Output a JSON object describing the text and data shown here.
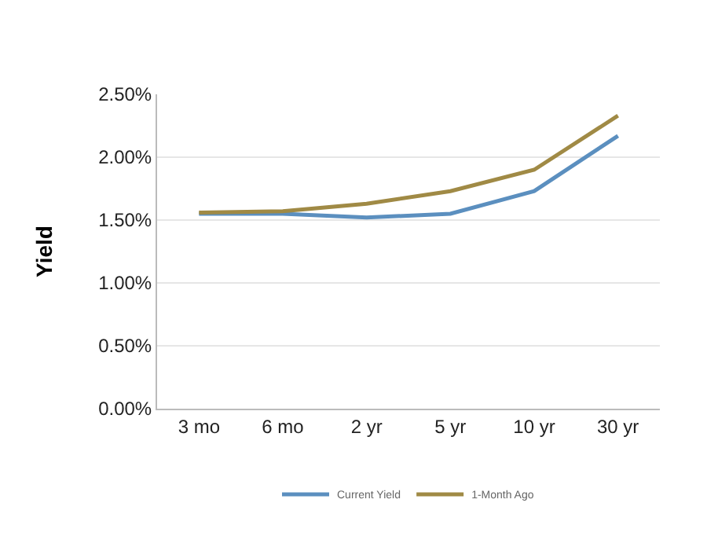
{
  "chart_data": {
    "type": "line",
    "ylabel": "Yield",
    "categories": [
      "3 mo",
      "6 mo",
      "2 yr",
      "5 yr",
      "10 yr",
      "30 yr"
    ],
    "series": [
      {
        "name": "Current Yield",
        "color": "#5b8fbf",
        "values": [
          1.55,
          1.55,
          1.52,
          1.55,
          1.73,
          2.17
        ]
      },
      {
        "name": "1-Month Ago",
        "color": "#a08a45",
        "values": [
          1.56,
          1.57,
          1.63,
          1.73,
          1.9,
          2.33
        ]
      }
    ],
    "ylim": [
      0,
      2.5
    ],
    "yticks": [
      {
        "value": 0,
        "label": "0.00%"
      },
      {
        "value": 0.5,
        "label": "0.50%"
      },
      {
        "value": 1,
        "label": "1.00%"
      },
      {
        "value": 1.5,
        "label": "1.50%"
      },
      {
        "value": 2,
        "label": "2.00%"
      },
      {
        "value": 2.5,
        "label": "2.50%"
      }
    ],
    "grid": "y",
    "legend": "bottom",
    "marker": "none",
    "line_style": "solid"
  }
}
